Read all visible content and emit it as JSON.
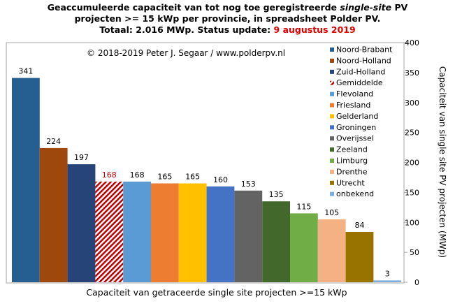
{
  "chart_data": {
    "type": "bar",
    "title": {
      "line1": "Geaccumuleerde capaciteit van tot nog toe geregistreerde ",
      "line1_italic": "single-site",
      "line1_end": " PV",
      "line2": "projecten >= 15 kWp per provincie, in spreadsheet Polder PV.",
      "line3": "Totaal: 2.016 MWp. Status update: ",
      "line3_date": "9 augustus 2019"
    },
    "copyright": "© 2018-2019  Peter J. Segaar / www.polderpv.nl",
    "xlabel": "Capaciteit van getraceerde single site projecten >=15 kWp",
    "ylabel": "Capaciteit van single site PV projecten (MWp)",
    "ylim": [
      0,
      400
    ],
    "yticks": [
      0,
      50,
      100,
      150,
      200,
      250,
      300,
      350,
      400
    ],
    "grid": false,
    "legend_position": "top-right",
    "categories": [
      "Noord-Brabant",
      "Noord-Holland",
      "Zuid-Holland",
      "Gemiddelde",
      "Flevoland",
      "Friesland",
      "Gelderland",
      "Groningen",
      "Overijssel",
      "Zeeland",
      "Limburg",
      "Drenthe",
      "Utrecht",
      "onbekend"
    ],
    "values": [
      341,
      224,
      197,
      168,
      168,
      165,
      165,
      160,
      153,
      135,
      115,
      105,
      84,
      3
    ],
    "colors": [
      "#255e91",
      "#9e480e",
      "#264478",
      "#c00000",
      "#5b9bd5",
      "#ed7d31",
      "#ffc000",
      "#4472c4",
      "#636363",
      "#43682b",
      "#70ad47",
      "#f4b183",
      "#997300",
      "#7cafdd"
    ],
    "hatched": [
      false,
      false,
      false,
      true,
      false,
      false,
      false,
      false,
      false,
      false,
      false,
      false,
      false,
      false
    ],
    "label_colors": [
      "#000000",
      "#000000",
      "#000000",
      "#c00000",
      "#000000",
      "#000000",
      "#000000",
      "#000000",
      "#000000",
      "#000000",
      "#000000",
      "#000000",
      "#000000",
      "#000000"
    ]
  }
}
